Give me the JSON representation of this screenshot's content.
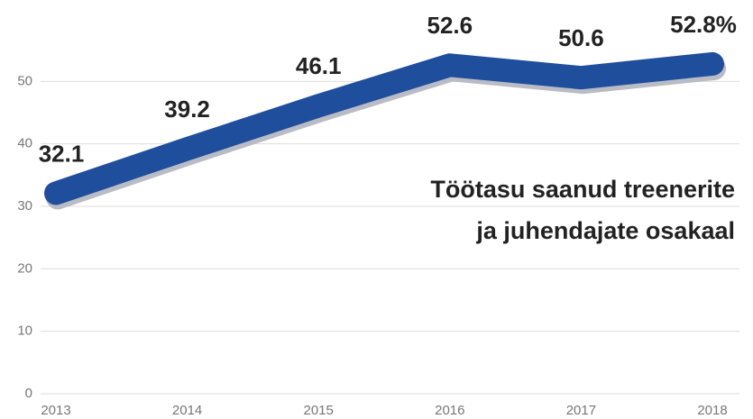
{
  "chart_data": {
    "type": "line",
    "title": [
      "Töötasu saanud treenerite",
      "ja juhendajate osakaal"
    ],
    "categories": [
      "2013",
      "2014",
      "2015",
      "2016",
      "2017",
      "2018"
    ],
    "series": [
      {
        "name": "Töötasu saanud treenerite ja juhendajate osakaal",
        "color": "#1f4e9c",
        "values": [
          32.1,
          39.2,
          46.1,
          52.6,
          50.6,
          52.8
        ],
        "value_labels": [
          "32.1",
          "39.2",
          "46.1",
          "52.6",
          "50.6",
          "52.8%"
        ]
      }
    ],
    "ylim": [
      0,
      60
    ],
    "yticks": [
      0,
      10,
      20,
      30,
      40,
      50
    ],
    "grid": true
  }
}
